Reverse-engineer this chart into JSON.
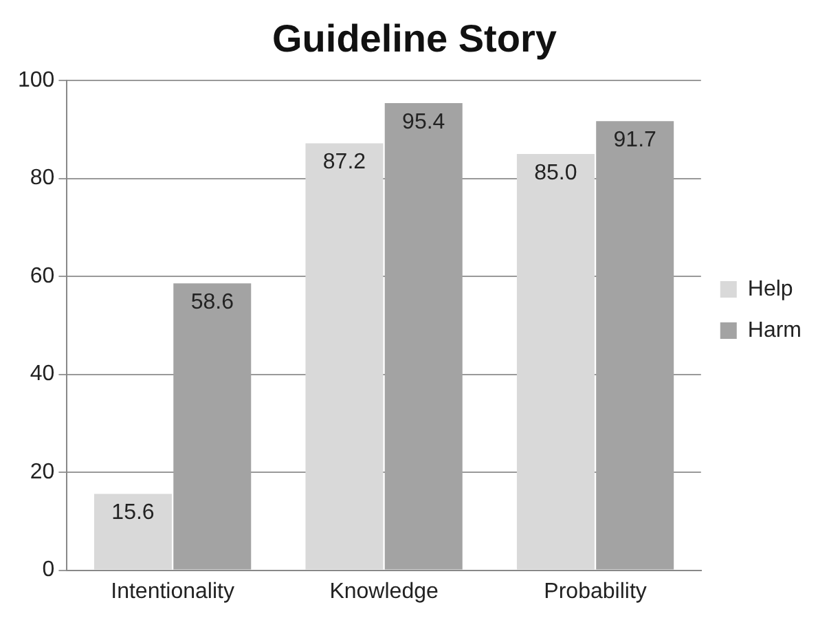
{
  "chart_data": {
    "type": "bar",
    "title": "Guideline Story",
    "categories": [
      "Intentionality",
      "Knowledge",
      "Probability"
    ],
    "series": [
      {
        "name": "Help",
        "color": "#d9d9d9",
        "values": [
          15.6,
          87.2,
          85.0
        ],
        "value_labels": [
          "15.6",
          "87.2",
          "85.0"
        ]
      },
      {
        "name": "Harm",
        "color": "#a3a3a3",
        "values": [
          58.6,
          95.4,
          91.7
        ],
        "value_labels": [
          "58.6",
          "95.4",
          "91.7"
        ]
      }
    ],
    "ylim": [
      0,
      100
    ],
    "yticks": [
      0,
      20,
      40,
      60,
      80,
      100
    ],
    "grid": "y",
    "legend": "right"
  }
}
